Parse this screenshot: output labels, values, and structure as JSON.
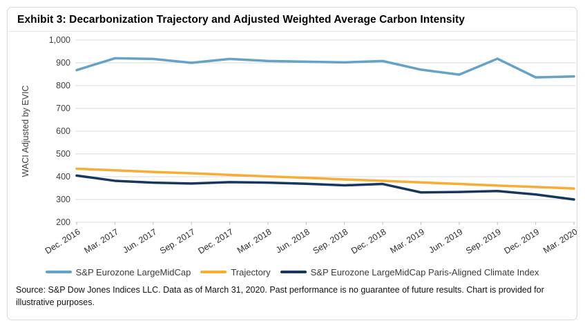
{
  "card": {
    "title": "Exhibit 3: Decarbonization Trajectory and Adjusted Weighted Average Carbon Intensity",
    "source_text": "Source: S&P Dow Jones Indices LLC. Data as of March 31, 2020. Past performance is no guarantee of future results. Chart is provided for illustrative purposes."
  },
  "colors": {
    "series_light_blue": "#64A2C8",
    "series_orange": "#F9AC33",
    "series_navy": "#17375E",
    "gridline": "#D9D9D9",
    "tick_mark": "#BFBFBF",
    "axis_text": "#404040",
    "card_border": "#D9D9D9"
  },
  "chart_data": {
    "type": "line",
    "title": "Exhibit 3: Decarbonization Trajectory and Adjusted Weighted Average Carbon Intensity",
    "xlabel": "",
    "ylabel": "WACI Adjusted by EVIC",
    "ylim": [
      200,
      1000
    ],
    "ytick_step": 100,
    "yticks_labels": [
      "200",
      "300",
      "400",
      "500",
      "600",
      "700",
      "800",
      "900",
      "1,000"
    ],
    "grid": "horizontal",
    "legend_position": "bottom",
    "categories": [
      "Dec. 2016",
      "Mar. 2017",
      "Jun. 2017",
      "Sep. 2017",
      "Dec. 2017",
      "Mar. 2018",
      "Jun. 2018",
      "Sep. 2018",
      "Dec. 2018",
      "Mar. 2019",
      "Jun. 2019",
      "Sep. 2019",
      "Dec. 2019",
      "Mar. 2020"
    ],
    "series": [
      {
        "name": "S&P Eurozone LargeMidCap",
        "color": "#64A2C8",
        "values": [
          868,
          920,
          917,
          900,
          917,
          908,
          905,
          902,
          908,
          870,
          848,
          918,
          836,
          840
        ]
      },
      {
        "name": "Trajectory",
        "color": "#F9AC33",
        "values": [
          435,
          428,
          421,
          415,
          408,
          401,
          395,
          388,
          382,
          375,
          368,
          361,
          355,
          348
        ]
      },
      {
        "name": "S&P Eurozone LargeMidCap Paris-Aligned Climate Index",
        "color": "#17375E",
        "values": [
          405,
          382,
          374,
          370,
          376,
          374,
          369,
          362,
          368,
          331,
          333,
          337,
          322,
          300
        ]
      }
    ]
  }
}
